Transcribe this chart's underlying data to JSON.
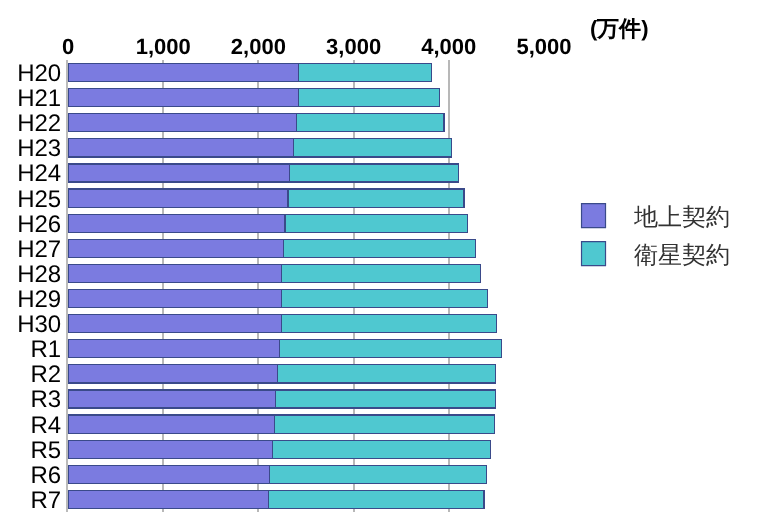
{
  "chart_data": {
    "type": "bar",
    "orientation": "horizontal",
    "stacked": true,
    "categories": [
      "H20",
      "H21",
      "H22",
      "H23",
      "H24",
      "H25",
      "H26",
      "H27",
      "H28",
      "H29",
      "H30",
      "R1",
      "R2",
      "R3",
      "R4",
      "R5",
      "R6",
      "R7"
    ],
    "series": [
      {
        "name": "地上契約",
        "color": "#7b7be0",
        "values": [
          2420,
          2420,
          2400,
          2370,
          2330,
          2310,
          2280,
          2260,
          2240,
          2240,
          2240,
          2220,
          2200,
          2180,
          2170,
          2150,
          2120,
          2110
        ]
      },
      {
        "name": "衛星契約",
        "color": "#4fc8d0",
        "values": [
          1400,
          1480,
          1550,
          1660,
          1770,
          1850,
          1920,
          2020,
          2090,
          2170,
          2260,
          2330,
          2290,
          2310,
          2310,
          2290,
          2280,
          2260
        ]
      }
    ],
    "xlim": [
      0,
      5000
    ],
    "xticks": [
      0,
      {
        "value": 1000,
        "label": "1,000"
      },
      {
        "value": 2000,
        "label": "2,000"
      },
      {
        "value": 3000,
        "label": "3,000"
      },
      {
        "value": 4000,
        "label": "4,000"
      },
      {
        "value": 5000,
        "label": "5,000"
      }
    ],
    "annotations": [
      "(万件)"
    ],
    "grid": "x",
    "legend": "right"
  }
}
